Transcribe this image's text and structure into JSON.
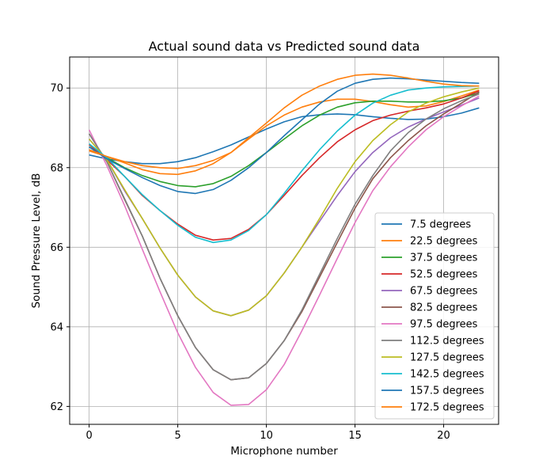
{
  "chart_data": {
    "type": "line",
    "title": "Actual sound data vs Predicted sound data",
    "xlabel": "Microphone number",
    "ylabel": "Sound Pressure Level, dB",
    "xlim": [
      -1.1,
      23.1
    ],
    "ylim": [
      61.55,
      70.78
    ],
    "xticks": [
      0,
      5,
      10,
      15,
      20
    ],
    "yticks": [
      62,
      64,
      66,
      68,
      70
    ],
    "grid": true,
    "legend_position": "lower-right",
    "x": [
      0,
      1,
      2,
      3,
      4,
      5,
      6,
      7,
      8,
      9,
      10,
      11,
      12,
      13,
      14,
      15,
      16,
      17,
      18,
      19,
      20,
      21,
      22
    ],
    "series": [
      {
        "name": "7.5 degrees",
        "color": "#1f77b4",
        "values": [
          68.32,
          68.22,
          68.15,
          68.1,
          68.1,
          68.15,
          68.25,
          68.4,
          68.57,
          68.77,
          68.97,
          69.15,
          69.28,
          69.33,
          69.35,
          69.33,
          69.28,
          69.24,
          69.21,
          69.22,
          69.28,
          69.37,
          69.5
        ]
      },
      {
        "name": "22.5 degrees",
        "color": "#ff7f0e",
        "values": [
          68.42,
          68.28,
          68.12,
          67.95,
          67.85,
          67.83,
          67.92,
          68.1,
          68.38,
          68.72,
          69.05,
          69.32,
          69.52,
          69.65,
          69.72,
          69.72,
          69.66,
          69.58,
          69.52,
          69.55,
          69.66,
          69.8,
          69.95
        ]
      },
      {
        "name": "37.5 degrees",
        "color": "#2ca02c",
        "values": [
          68.52,
          68.25,
          68.0,
          67.8,
          67.65,
          67.55,
          67.52,
          67.6,
          67.78,
          68.05,
          68.38,
          68.72,
          69.05,
          69.32,
          69.52,
          69.63,
          69.67,
          69.67,
          69.65,
          69.65,
          69.68,
          69.75,
          69.88
        ]
      },
      {
        "name": "52.5 degrees",
        "color": "#d62728",
        "values": [
          68.58,
          68.2,
          67.78,
          67.3,
          66.92,
          66.58,
          66.3,
          66.18,
          66.22,
          66.45,
          66.82,
          67.3,
          67.8,
          68.25,
          68.65,
          68.95,
          69.18,
          69.32,
          69.42,
          69.5,
          69.6,
          69.75,
          69.93
        ]
      },
      {
        "name": "67.5 degrees",
        "color": "#9467bd",
        "values": [
          68.72,
          68.2,
          67.42,
          66.72,
          65.98,
          65.3,
          64.75,
          64.4,
          64.28,
          64.42,
          64.78,
          65.35,
          66.0,
          66.65,
          67.3,
          67.9,
          68.38,
          68.75,
          69.02,
          69.22,
          69.4,
          69.57,
          69.75
        ]
      },
      {
        "name": "82.5 degrees",
        "color": "#8c564b",
        "values": [
          68.85,
          68.15,
          67.2,
          66.28,
          65.22,
          64.28,
          63.48,
          62.92,
          62.67,
          62.72,
          63.08,
          63.65,
          64.38,
          65.25,
          66.12,
          66.98,
          67.72,
          68.25,
          68.68,
          69.05,
          69.35,
          69.62,
          69.9
        ]
      },
      {
        "name": "97.5 degrees",
        "color": "#e377c2",
        "values": [
          68.95,
          68.05,
          67.05,
          65.95,
          64.88,
          63.85,
          62.98,
          62.35,
          62.03,
          62.05,
          62.42,
          63.05,
          63.9,
          64.8,
          65.72,
          66.62,
          67.42,
          68.02,
          68.52,
          68.95,
          69.28,
          69.55,
          69.8
        ]
      },
      {
        "name": "112.5 degrees",
        "color": "#7f7f7f",
        "values": [
          68.85,
          68.15,
          67.22,
          66.28,
          65.22,
          64.28,
          63.48,
          62.92,
          62.67,
          62.72,
          63.08,
          63.65,
          64.42,
          65.32,
          66.22,
          67.08,
          67.8,
          68.42,
          68.88,
          69.22,
          69.48,
          69.68,
          69.85
        ]
      },
      {
        "name": "127.5 degrees",
        "color": "#bcbd22",
        "values": [
          68.72,
          68.2,
          67.45,
          66.72,
          65.98,
          65.3,
          64.75,
          64.4,
          64.28,
          64.42,
          64.78,
          65.35,
          66.0,
          66.72,
          67.48,
          68.15,
          68.68,
          69.08,
          69.4,
          69.62,
          69.78,
          69.9,
          70.0
        ]
      },
      {
        "name": "142.5 degrees",
        "color": "#17becf",
        "values": [
          68.6,
          68.25,
          67.78,
          67.32,
          66.92,
          66.55,
          66.25,
          66.12,
          66.18,
          66.42,
          66.82,
          67.35,
          67.92,
          68.45,
          68.92,
          69.32,
          69.62,
          69.82,
          69.95,
          70.0,
          70.03,
          70.04,
          70.05
        ]
      },
      {
        "name": "157.5 degrees",
        "color": "#1f77b4",
        "values": [
          68.52,
          68.22,
          67.98,
          67.75,
          67.55,
          67.4,
          67.35,
          67.45,
          67.68,
          68.0,
          68.38,
          68.8,
          69.2,
          69.6,
          69.92,
          70.12,
          70.22,
          70.25,
          70.23,
          70.2,
          70.17,
          70.14,
          70.12
        ]
      },
      {
        "name": "172.5 degrees",
        "color": "#ff7f0e",
        "values": [
          68.45,
          68.28,
          68.15,
          68.05,
          68.0,
          67.98,
          68.05,
          68.18,
          68.38,
          68.75,
          69.12,
          69.5,
          69.82,
          70.05,
          70.22,
          70.32,
          70.35,
          70.32,
          70.25,
          70.17,
          70.1,
          70.06,
          70.05
        ]
      }
    ]
  }
}
